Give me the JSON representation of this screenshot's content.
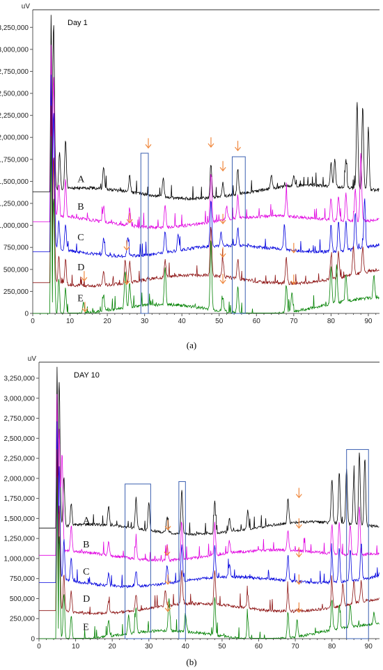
{
  "chart_data": [
    {
      "type": "line",
      "title": "Day 1",
      "caption": "(a)",
      "ylabel": "uV",
      "xlim": [
        0,
        93
      ],
      "ylim": [
        0,
        3450000
      ],
      "xticks": [
        0,
        10,
        20,
        30,
        40,
        50,
        60,
        70,
        80,
        90
      ],
      "yticks": [
        0,
        250000,
        500000,
        750000,
        1000000,
        1250000,
        1500000,
        1750000,
        2000000,
        2250000,
        2500000,
        2750000,
        3000000,
        3250000
      ],
      "ytick_labels": [
        "0",
        "250,000",
        "500,000",
        "750,000",
        "1,000,000",
        "1,250,000",
        "1,500,000",
        "1,750,000",
        "2,000,000",
        "2,250,000",
        "2,500,000",
        "2,750,000",
        "3,000,000",
        "3,250,000"
      ],
      "series": [
        {
          "name": "A",
          "color": "#000000",
          "offset": 1380000,
          "peaks": [
            [
              5.6,
              1900000
            ],
            [
              7.2,
              420000
            ],
            [
              8.8,
              560000
            ],
            [
              19,
              240000
            ],
            [
              26,
              180000
            ],
            [
              35,
              220000
            ],
            [
              47.8,
              380000
            ],
            [
              51,
              150000
            ],
            [
              55,
              300000
            ],
            [
              64,
              150000
            ],
            [
              70,
              120000
            ],
            [
              80,
              260000
            ],
            [
              81,
              300000
            ],
            [
              84,
              320000
            ],
            [
              87,
              1000000
            ],
            [
              88.5,
              950000
            ],
            [
              90,
              700000
            ]
          ]
        },
        {
          "name": "B",
          "color": "#e000e0",
          "offset": 1040000,
          "peaks": [
            [
              5.6,
              1600000
            ],
            [
              7,
              380000
            ],
            [
              8.8,
              420000
            ],
            [
              19,
              180000
            ],
            [
              26,
              200000
            ],
            [
              35.5,
              250000
            ],
            [
              47.8,
              560000
            ],
            [
              52,
              150000
            ],
            [
              55,
              260000
            ],
            [
              68,
              250000
            ],
            [
              80,
              250000
            ],
            [
              82,
              280000
            ],
            [
              84,
              320000
            ],
            [
              86.5,
              360000
            ],
            [
              88,
              780000
            ]
          ]
        },
        {
          "name": "C",
          "color": "#0000dd",
          "offset": 700000,
          "peaks": [
            [
              5.6,
              1550000
            ],
            [
              7,
              320000
            ],
            [
              8.8,
              300000
            ],
            [
              19,
              200000
            ],
            [
              25.5,
              230000
            ],
            [
              35.5,
              240000
            ],
            [
              39,
              200000
            ],
            [
              47.8,
              520000
            ],
            [
              50.5,
              160000
            ],
            [
              55,
              200000
            ],
            [
              67.5,
              280000
            ],
            [
              80,
              300000
            ],
            [
              82,
              340000
            ],
            [
              84,
              330000
            ],
            [
              86.5,
              420000
            ],
            [
              89,
              560000
            ]
          ]
        },
        {
          "name": "D",
          "color": "#8b1010",
          "offset": 350000,
          "peaks": [
            [
              5.6,
              1450000
            ],
            [
              7,
              300000
            ],
            [
              8.8,
              280000
            ],
            [
              19,
              160000
            ],
            [
              24.8,
              260000
            ],
            [
              26,
              240000
            ],
            [
              35.5,
              200000
            ],
            [
              47.8,
              560000
            ],
            [
              51,
              180000
            ],
            [
              55,
              220000
            ],
            [
              68,
              300000
            ],
            [
              80,
              280000
            ],
            [
              82,
              300000
            ],
            [
              86,
              320000
            ],
            [
              88.5,
              300000
            ]
          ]
        },
        {
          "name": "E",
          "color": "#008000",
          "offset": 0,
          "peaks": [
            [
              5.6,
              1350000
            ],
            [
              7,
              420000
            ],
            [
              8.8,
              300000
            ],
            [
              13.6,
              120000
            ],
            [
              19,
              180000
            ],
            [
              24.8,
              400000
            ],
            [
              26,
              260000
            ],
            [
              35.5,
              420000
            ],
            [
              47.8,
              780000
            ],
            [
              51,
              160000
            ],
            [
              55,
              300000
            ],
            [
              68,
              320000
            ],
            [
              69.5,
              220000
            ],
            [
              80,
              420000
            ],
            [
              81.5,
              420000
            ],
            [
              84,
              300000
            ],
            [
              91.5,
              250000
            ]
          ]
        }
      ],
      "series_labels": [
        {
          "text": "A",
          "x": 12,
          "y": 1490000
        },
        {
          "text": "B",
          "x": 12,
          "y": 1180000
        },
        {
          "text": "C",
          "x": 12,
          "y": 830000
        },
        {
          "text": "D",
          "x": 12,
          "y": 490000
        },
        {
          "text": "E",
          "x": 12,
          "y": 140000
        }
      ],
      "boxes": [
        [
          29,
          31,
          0,
          1820000
        ],
        [
          53.5,
          57,
          0,
          1780000
        ]
      ],
      "arrows": [
        [
          31,
          1880000
        ],
        [
          47.8,
          1890000
        ],
        [
          51,
          1620000
        ],
        [
          55,
          1850000
        ],
        [
          26,
          1030000
        ],
        [
          25.2,
          720000
        ],
        [
          51,
          1020000
        ],
        [
          51,
          640000
        ],
        [
          70,
          690000
        ],
        [
          13.8,
          370000
        ],
        [
          25.2,
          330000
        ],
        [
          51,
          340000
        ],
        [
          70,
          330000
        ],
        [
          14,
          20000
        ]
      ]
    },
    {
      "type": "line",
      "title": "DAY 10",
      "caption": "(b)",
      "ylabel": "uV",
      "xlim": [
        0,
        93
      ],
      "ylim": [
        0,
        3450000
      ],
      "xticks": [
        0,
        10,
        20,
        30,
        40,
        50,
        60,
        70,
        80,
        90
      ],
      "yticks": [
        0,
        250000,
        500000,
        750000,
        1000000,
        1250000,
        1500000,
        1750000,
        2000000,
        2250000,
        2500000,
        2750000,
        3000000,
        3250000
      ],
      "ytick_labels": [
        "0",
        "250,000",
        "500,000",
        "750,000",
        "1,000,000",
        "1,250,000",
        "1,500,000",
        "1,750,000",
        "2,000,000",
        "2,250,000",
        "2,500,000",
        "2,750,000",
        "3,000,000",
        "3,250,000"
      ],
      "series": [
        {
          "name": "A",
          "color": "#000000",
          "offset": 1380000,
          "peaks": [
            [
              5.5,
              1800000
            ],
            [
              6.8,
              600000
            ],
            [
              8.8,
              280000
            ],
            [
              19,
              240000
            ],
            [
              26.5,
              380000
            ],
            [
              30,
              360000
            ],
            [
              35,
              200000
            ],
            [
              39,
              560000
            ],
            [
              48,
              400000
            ],
            [
              52,
              180000
            ],
            [
              57,
              240000
            ],
            [
              68,
              300000
            ],
            [
              80,
              550000
            ],
            [
              82,
              650000
            ],
            [
              84,
              700000
            ],
            [
              86,
              600000
            ],
            [
              87.5,
              900000
            ],
            [
              89,
              850000
            ]
          ]
        },
        {
          "name": "B",
          "color": "#e000e0",
          "offset": 1040000,
          "peaks": [
            [
              5.5,
              1500000
            ],
            [
              6.3,
              1200000
            ],
            [
              8.8,
              320000
            ],
            [
              19,
              160000
            ],
            [
              26.5,
              200000
            ],
            [
              35,
              200000
            ],
            [
              39,
              450000
            ],
            [
              48,
              400000
            ],
            [
              52,
              150000
            ],
            [
              68,
              250000
            ],
            [
              80,
              360000
            ],
            [
              82,
              400000
            ],
            [
              85,
              380000
            ],
            [
              87.5,
              600000
            ]
          ]
        },
        {
          "name": "C",
          "color": "#0000dd",
          "offset": 700000,
          "peaks": [
            [
              5.5,
              1400000
            ],
            [
              6.8,
              500000
            ],
            [
              8.8,
              300000
            ],
            [
              19,
              150000
            ],
            [
              26.5,
              200000
            ],
            [
              35,
              230000
            ],
            [
              39,
              450000
            ],
            [
              48,
              400000
            ],
            [
              52,
              160000
            ],
            [
              68,
              300000
            ],
            [
              80,
              360000
            ],
            [
              82,
              420000
            ],
            [
              85,
              400000
            ],
            [
              88,
              460000
            ]
          ]
        },
        {
          "name": "D",
          "color": "#8b1010",
          "offset": 350000,
          "peaks": [
            [
              5.5,
              1300000
            ],
            [
              6.8,
              450000
            ],
            [
              8.8,
              260000
            ],
            [
              19,
              160000
            ],
            [
              26.5,
              200000
            ],
            [
              34.5,
              200000
            ],
            [
              39,
              420000
            ],
            [
              48,
              420000
            ],
            [
              57,
              180000
            ],
            [
              68,
              260000
            ],
            [
              80,
              300000
            ],
            [
              83,
              280000
            ],
            [
              86,
              280000
            ],
            [
              88,
              260000
            ]
          ]
        },
        {
          "name": "E",
          "color": "#008000",
          "offset": 0,
          "peaks": [
            [
              5.5,
              1300000
            ],
            [
              6.8,
              600000
            ],
            [
              8.8,
              300000
            ],
            [
              19,
              200000
            ],
            [
              24.5,
              220000
            ],
            [
              26.5,
              300000
            ],
            [
              35.5,
              400000
            ],
            [
              40,
              220000
            ],
            [
              48,
              480000
            ],
            [
              57,
              260000
            ],
            [
              68,
              320000
            ],
            [
              70.5,
              200000
            ],
            [
              80,
              380000
            ],
            [
              82,
              300000
            ],
            [
              85,
              280000
            ],
            [
              91.5,
              150000
            ]
          ]
        }
      ],
      "series_labels": [
        {
          "text": "A",
          "x": 12,
          "y": 1440000
        },
        {
          "text": "B",
          "x": 12,
          "y": 1140000
        },
        {
          "text": "C",
          "x": 12,
          "y": 800000
        },
        {
          "text": "D",
          "x": 12,
          "y": 460000
        },
        {
          "text": "E",
          "x": 12,
          "y": 110000
        }
      ],
      "boxes": [
        [
          23.5,
          30.5,
          0,
          1930000
        ],
        [
          38.2,
          40,
          0,
          1960000
        ],
        [
          84,
          90,
          0,
          2360000
        ]
      ],
      "arrows": [
        [
          71,
          1760000
        ],
        [
          71,
          1380000
        ],
        [
          35.2,
          1360000
        ],
        [
          35,
          1040000
        ],
        [
          71,
          1020000
        ],
        [
          35.2,
          680000
        ],
        [
          71,
          680000
        ],
        [
          35.2,
          340000
        ],
        [
          71,
          330000
        ]
      ]
    }
  ]
}
